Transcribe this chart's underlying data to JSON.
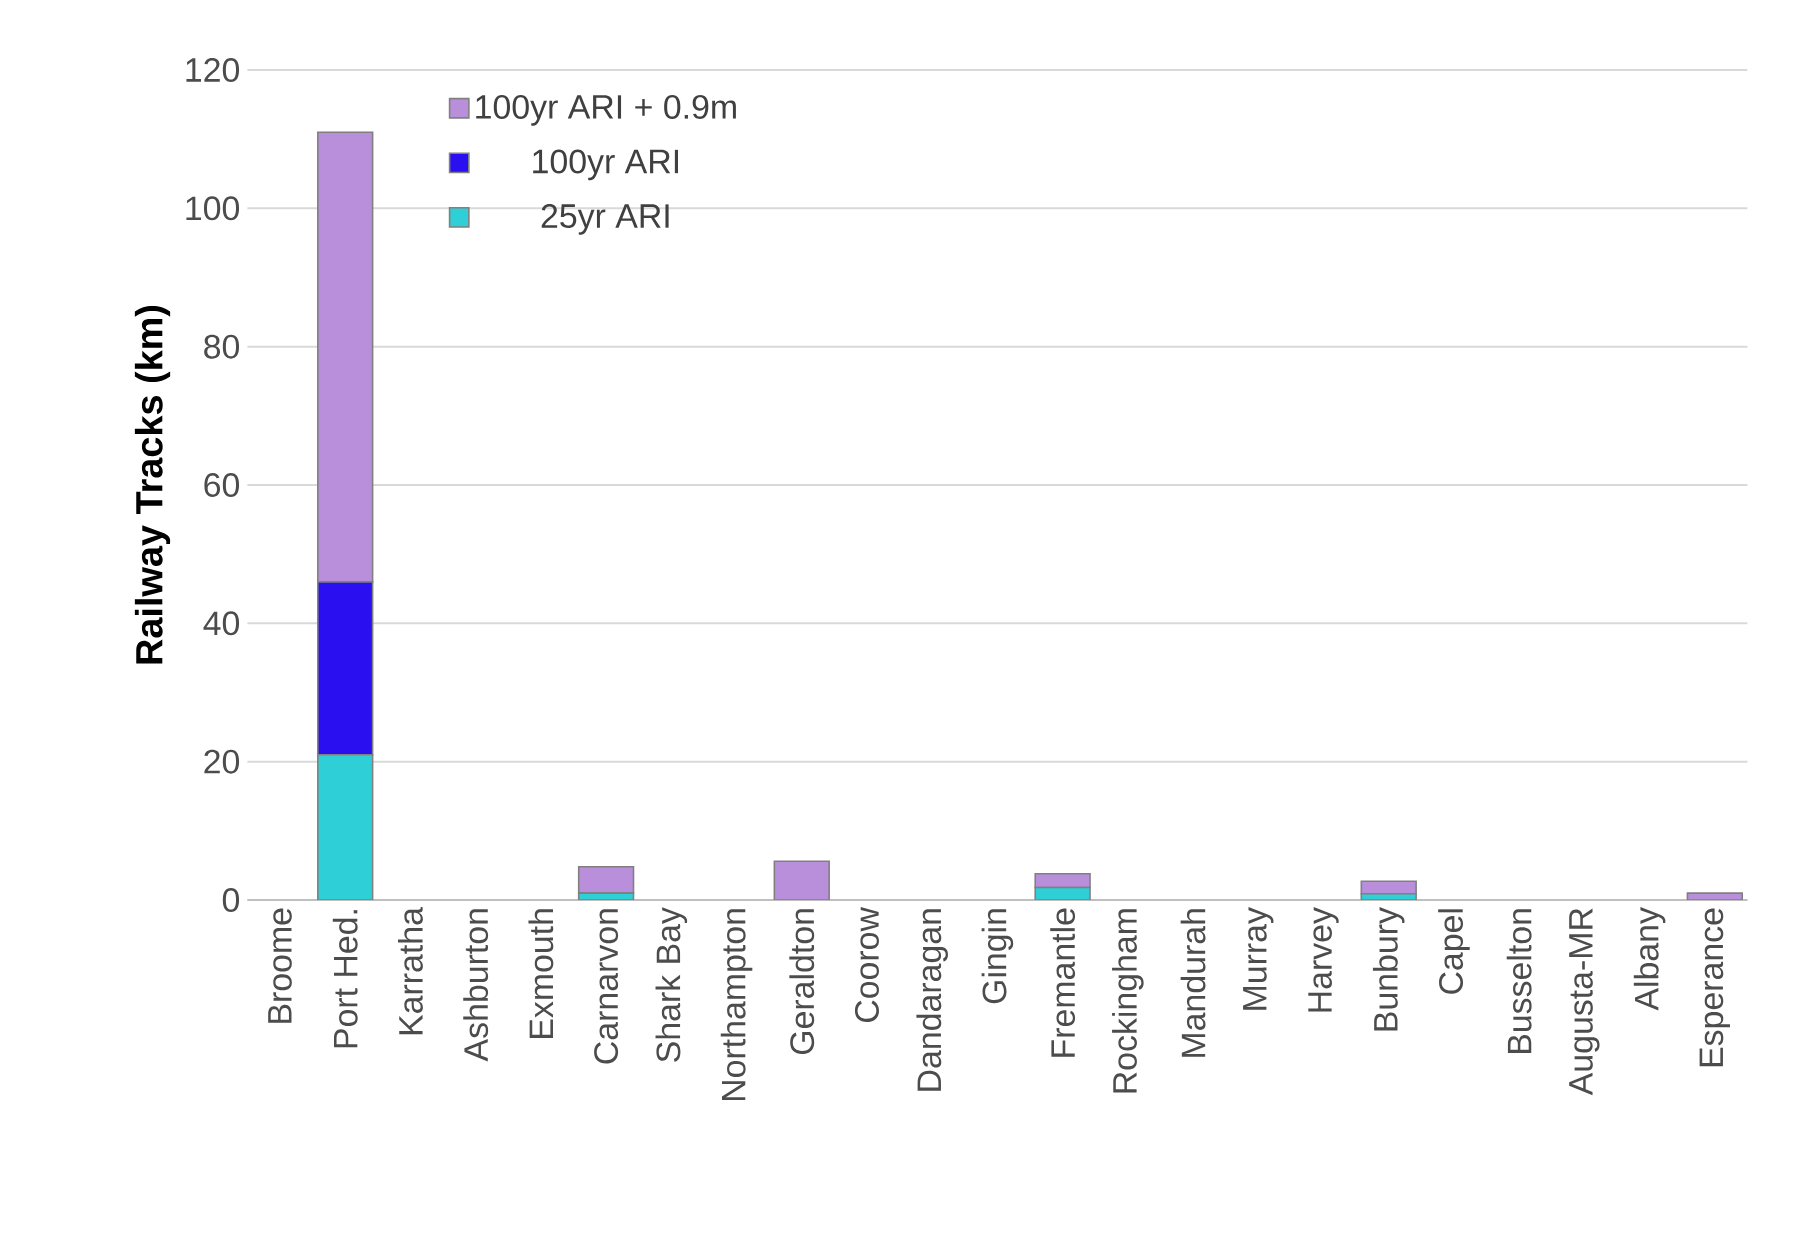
{
  "chart_data": {
    "type": "bar",
    "stacked": true,
    "ylabel": "Railway Tracks (km)",
    "categories": [
      "Broome",
      "Port Hed.",
      "Karratha",
      "Ashburton",
      "Exmouth",
      "Carnarvon",
      "Shark Bay",
      "Northampton",
      "Geraldton",
      "Coorow",
      "Dandaragan",
      "Gingin",
      "Fremantle",
      "Rockingham",
      "Mandurah",
      "Murray",
      "Harvey",
      "Bunbury",
      "Capel",
      "Busselton",
      "Augusta-MR",
      "Albany",
      "Esperance"
    ],
    "series": [
      {
        "name": "25yr ARI",
        "color": "#2ecfd6",
        "values": [
          0,
          21,
          0,
          0,
          0,
          1,
          0,
          0,
          0,
          0,
          0,
          0,
          1.8,
          0,
          0,
          0,
          0,
          0.9,
          0,
          0,
          0,
          0,
          0
        ]
      },
      {
        "name": "100yr ARI",
        "color": "#2a0ff0",
        "values": [
          0,
          25,
          0,
          0,
          0,
          0,
          0,
          0,
          0,
          0,
          0,
          0,
          0,
          0,
          0,
          0,
          0,
          0,
          0,
          0,
          0,
          0,
          0
        ]
      },
      {
        "name": "100yr ARI + 0.9m",
        "color": "#b98fdc",
        "values": [
          0,
          65,
          0,
          0,
          0,
          3.8,
          0,
          0,
          5.6,
          0,
          0,
          0,
          2,
          0,
          0,
          0,
          0,
          1.8,
          0,
          0,
          0,
          0,
          1
        ]
      }
    ],
    "ylim": [
      0,
      120
    ],
    "yticks": [
      0,
      20,
      40,
      60,
      80,
      100,
      120
    ],
    "grid": "y",
    "legend": "top left"
  }
}
